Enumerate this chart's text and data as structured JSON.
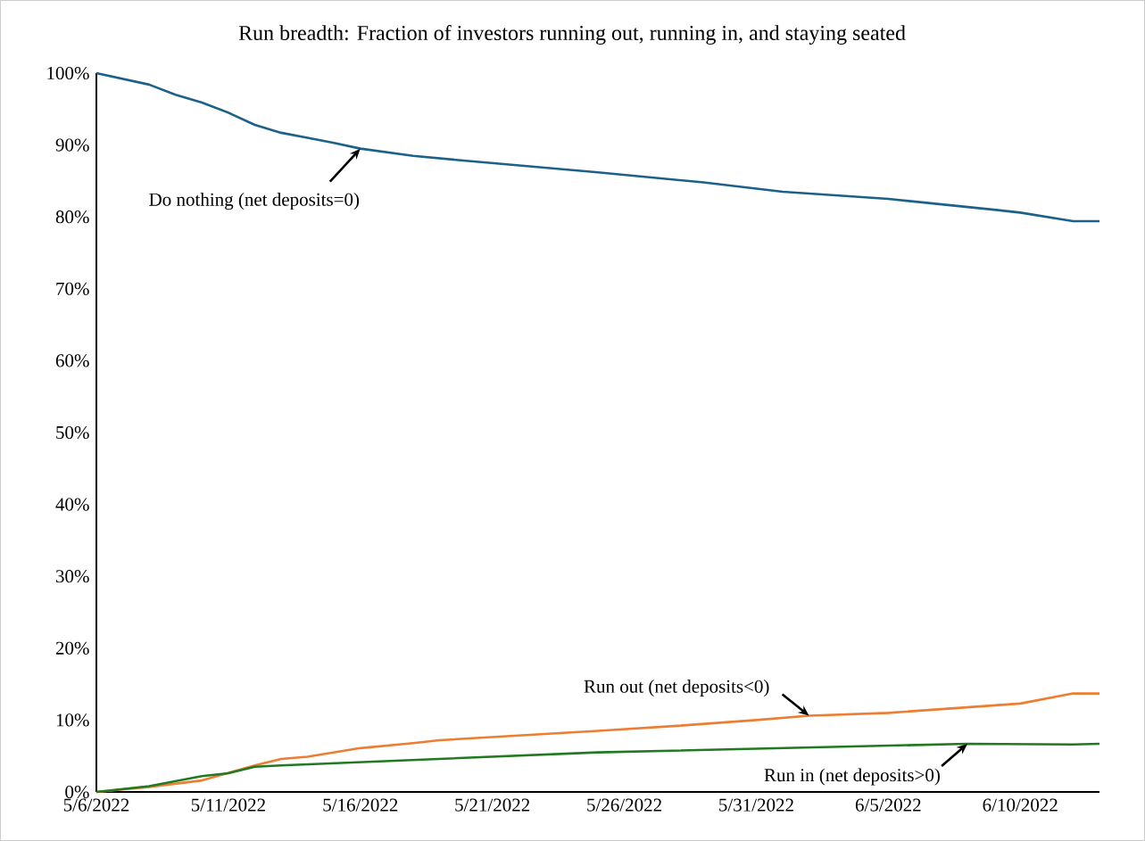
{
  "chart_data": {
    "type": "line",
    "title": "Run breadth: Fraction of investors running out, running in, and staying seated",
    "xlim": [
      "2022-05-06",
      "2022-06-13"
    ],
    "xticks": [
      {
        "value": "2022-05-06",
        "label": "5/6/2022"
      },
      {
        "value": "2022-05-11",
        "label": "5/11/2022"
      },
      {
        "value": "2022-05-16",
        "label": "5/16/2022"
      },
      {
        "value": "2022-05-21",
        "label": "5/21/2022"
      },
      {
        "value": "2022-05-26",
        "label": "5/26/2022"
      },
      {
        "value": "2022-05-31",
        "label": "5/31/2022"
      },
      {
        "value": "2022-06-05",
        "label": "6/5/2022"
      },
      {
        "value": "2022-06-10",
        "label": "6/10/2022"
      }
    ],
    "ylim": [
      0,
      100
    ],
    "yticks": [
      {
        "value": 0,
        "label": "0%"
      },
      {
        "value": 10,
        "label": "10%"
      },
      {
        "value": 20,
        "label": "20%"
      },
      {
        "value": 30,
        "label": "30%"
      },
      {
        "value": 40,
        "label": "40%"
      },
      {
        "value": 50,
        "label": "50%"
      },
      {
        "value": 60,
        "label": "60%"
      },
      {
        "value": 70,
        "label": "70%"
      },
      {
        "value": 80,
        "label": "80%"
      },
      {
        "value": 90,
        "label": "90%"
      },
      {
        "value": 100,
        "label": "100%"
      }
    ],
    "grid": false,
    "marker": "none",
    "line_style": "solid",
    "series": [
      {
        "color": "#1b6189",
        "x": [
          "2022-05-06",
          "2022-05-08",
          "2022-05-09",
          "2022-05-10",
          "2022-05-11",
          "2022-05-12",
          "2022-05-13",
          "2022-05-14",
          "2022-05-15",
          "2022-05-16",
          "2022-05-18",
          "2022-05-20",
          "2022-05-25",
          "2022-05-29",
          "2022-06-01",
          "2022-06-05",
          "2022-06-09",
          "2022-06-10",
          "2022-06-12",
          "2022-06-13"
        ],
        "values": [
          100,
          98.4,
          97.0,
          95.9,
          94.5,
          92.8,
          91.7,
          91.0,
          90.3,
          89.5,
          88.5,
          87.8,
          86.2,
          84.8,
          83.5,
          82.5,
          81.0,
          80.6,
          79.4,
          79.4
        ]
      },
      {
        "color": "#ed7d31",
        "x": [
          "2022-05-06",
          "2022-05-08",
          "2022-05-10",
          "2022-05-12",
          "2022-05-13",
          "2022-05-14",
          "2022-05-16",
          "2022-05-18",
          "2022-05-19",
          "2022-05-25",
          "2022-05-28",
          "2022-05-31",
          "2022-06-02",
          "2022-06-05",
          "2022-06-10",
          "2022-06-12",
          "2022-06-13"
        ],
        "values": [
          0,
          0.7,
          1.6,
          3.7,
          4.6,
          4.9,
          6.1,
          6.8,
          7.2,
          8.5,
          9.2,
          10.0,
          10.6,
          11.0,
          12.3,
          13.7,
          13.7
        ]
      },
      {
        "color": "#217a22",
        "x": [
          "2022-05-06",
          "2022-05-08",
          "2022-05-10",
          "2022-05-11",
          "2022-05-12",
          "2022-05-13",
          "2022-05-25",
          "2022-06-08",
          "2022-06-12",
          "2022-06-13"
        ],
        "values": [
          0,
          0.8,
          2.2,
          2.6,
          3.5,
          3.7,
          5.5,
          6.7,
          6.6,
          6.7
        ]
      }
    ],
    "annotations": [
      {
        "text": "Do nothing (net deposits=0)",
        "x": "2022-05-16",
        "y": 89.5
      },
      {
        "text": "Run out (net deposits<0)",
        "x": "2022-06-02",
        "y": 10.6
      },
      {
        "text": "Run in (net deposits>0)",
        "x": "2022-06-08",
        "y": 6.7
      }
    ]
  }
}
